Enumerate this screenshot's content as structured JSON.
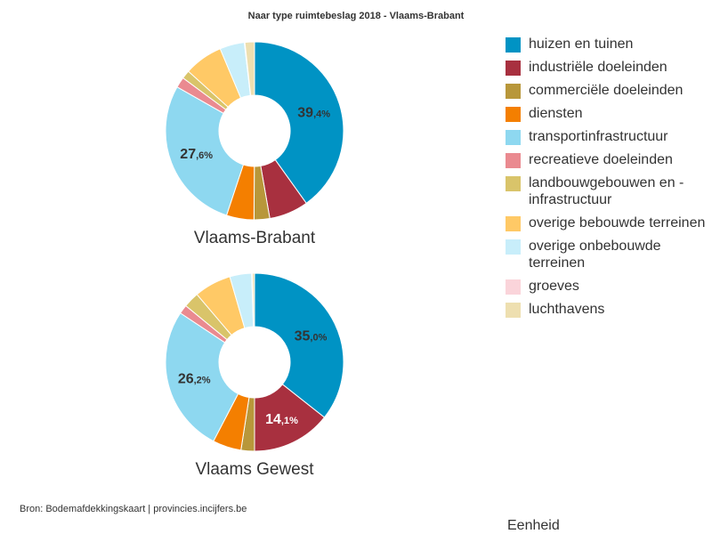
{
  "title": "Naar type ruimtebeslag 2018 - Vlaams-Brabant",
  "source": "Bron: Bodemafdekkingskaart | provincies.incijfers.be",
  "legend_footer": "Eenheid",
  "legend": [
    {
      "label": "huizen en tuinen",
      "color": "#0093c4"
    },
    {
      "label": "industriële doeleinden",
      "color": "#a8303f"
    },
    {
      "label": "commerciële doeleinden",
      "color": "#b8973a"
    },
    {
      "label": "diensten",
      "color": "#f47f00"
    },
    {
      "label": "transportinfrastructuur",
      "color": "#8ed8f0"
    },
    {
      "label": "recreatieve doeleinden",
      "color": "#ea8a90"
    },
    {
      "label": "landbouwgebouwen en -infrastructuur",
      "color": "#d9c46a"
    },
    {
      "label": "overige bebouwde terreinen",
      "color": "#ffc966"
    },
    {
      "label": "overige onbebouwde terreinen",
      "color": "#c8eefa"
    },
    {
      "label": "groeves",
      "color": "#fad4da"
    },
    {
      "label": "luchthavens",
      "color": "#eedfb0"
    }
  ],
  "chart_data": [
    {
      "type": "pie",
      "title": "Vlaams-Brabant",
      "categories": [
        "huizen en tuinen",
        "industriële doeleinden",
        "commerciële doeleinden",
        "diensten",
        "transportinfrastructuur",
        "recreatieve doeleinden",
        "landbouwgebouwen en -infrastructuur",
        "overige bebouwde terreinen",
        "overige onbebouwde terreinen",
        "groeves",
        "luchthavens"
      ],
      "values": [
        39.4,
        7.0,
        2.8,
        4.9,
        27.6,
        1.9,
        1.5,
        6.9,
        4.4,
        0.1,
        1.7
      ],
      "data_labels": [
        {
          "category": "huizen en tuinen",
          "int": "39",
          "dec": ",4%"
        },
        {
          "category": "transportinfrastructuur",
          "int": "27",
          "dec": ",6%"
        }
      ]
    },
    {
      "type": "pie",
      "title": "Vlaams Gewest",
      "categories": [
        "huizen en tuinen",
        "industriële doeleinden",
        "commerciële doeleinden",
        "diensten",
        "transportinfrastructuur",
        "recreatieve doeleinden",
        "landbouwgebouwen en -infrastructuur",
        "overige bebouwde terreinen",
        "overige onbebouwde terreinen",
        "groeves",
        "luchthavens"
      ],
      "values": [
        35.0,
        14.1,
        2.4,
        5.1,
        26.2,
        1.6,
        2.8,
        6.6,
        3.9,
        0.1,
        0.4
      ],
      "data_labels": [
        {
          "category": "huizen en tuinen",
          "int": "35",
          "dec": ",0%"
        },
        {
          "category": "industriële doeleinden",
          "int": "14",
          "dec": ",1%"
        },
        {
          "category": "transportinfrastructuur",
          "int": "26",
          "dec": ",2%"
        }
      ]
    }
  ]
}
